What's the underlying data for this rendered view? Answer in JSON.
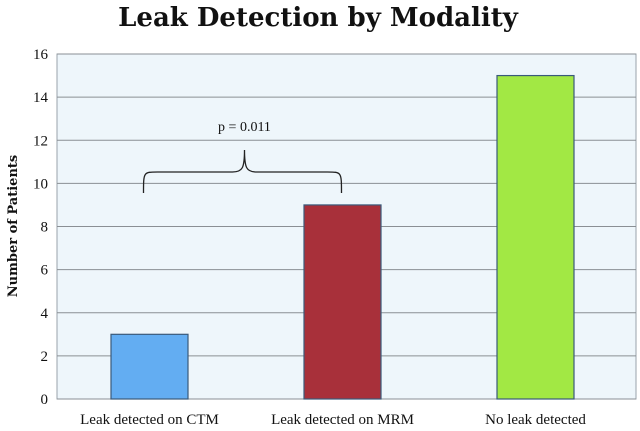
{
  "chart_data": {
    "type": "bar",
    "title": "Leak Detection by Modality",
    "xlabel": "",
    "ylabel": "Number of Patients",
    "categories": [
      "Leak detected on CTM",
      "Leak detected on MRM",
      "No leak detected"
    ],
    "values": [
      3,
      9,
      15
    ],
    "colors": [
      "#63adf2",
      "#a8303a",
      "#a2e844"
    ],
    "ylim": [
      0,
      16
    ],
    "yticks": [
      0,
      2,
      4,
      6,
      8,
      10,
      12,
      14,
      16
    ],
    "grid": true,
    "plot_background": "#eef6fb",
    "annotation": {
      "text": "p = 0.011",
      "spans": [
        "Leak detected on CTM",
        "Leak detected on MRM"
      ]
    }
  }
}
